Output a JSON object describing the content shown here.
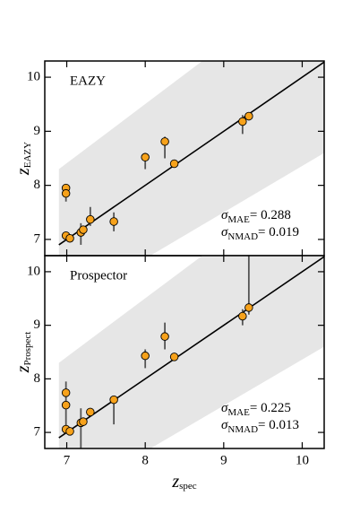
{
  "chart_data": [
    {
      "type": "scatter",
      "label": "EAZY",
      "ylabel": {
        "main": "z",
        "sub": "EAZY"
      },
      "annotations": [
        {
          "sym": "σ",
          "sub": "MAE",
          "text": "= 0.288"
        },
        {
          "sym": "σ",
          "sub": "NMAD",
          "text": "= 0.019"
        }
      ],
      "xlim": [
        6.72,
        10.28
      ],
      "ylim": [
        6.7,
        10.3
      ],
      "xticks": [
        7,
        8,
        9,
        10
      ],
      "yticks": [
        7,
        8,
        9,
        10
      ],
      "color": "#f7a21b",
      "errcolor": "#555555",
      "bandcolor": "#e6e6e6",
      "band": {
        "x": [
          6.9,
          10.28
        ],
        "lower": [
          5.7,
          8.6
        ],
        "upper": [
          8.3,
          12.0
        ]
      },
      "one_to_one": {
        "x": [
          6.9,
          10.28
        ],
        "y": [
          6.9,
          10.28
        ]
      },
      "x": [
        6.99,
        6.99,
        6.99,
        7.04,
        7.18,
        7.21,
        7.3,
        7.6,
        8.0,
        8.25,
        8.37,
        9.24,
        9.32
      ],
      "y": [
        7.95,
        7.85,
        7.07,
        7.02,
        7.13,
        7.18,
        7.37,
        7.33,
        8.52,
        8.81,
        8.4,
        9.18,
        9.28
      ],
      "y_low": [
        7.9,
        7.7,
        7.02,
        6.98,
        6.9,
        7.1,
        7.25,
        7.15,
        8.3,
        8.5,
        8.35,
        8.95,
        9.2
      ],
      "y_high": [
        8.0,
        7.95,
        7.12,
        7.06,
        7.3,
        7.25,
        7.6,
        7.5,
        8.6,
        8.9,
        8.45,
        9.3,
        9.33
      ]
    },
    {
      "type": "scatter",
      "label": "Prospector",
      "ylabel": {
        "main": "z",
        "sub": "Prospect"
      },
      "xlabel": {
        "main": "z",
        "sub": "spec"
      },
      "annotations": [
        {
          "sym": "σ",
          "sub": "MAE",
          "text": "= 0.225"
        },
        {
          "sym": "σ",
          "sub": "NMAD",
          "text": "= 0.013"
        }
      ],
      "xlim": [
        6.72,
        10.28
      ],
      "ylim": [
        6.7,
        10.3
      ],
      "xticks": [
        7,
        8,
        9,
        10
      ],
      "yticks": [
        7,
        8,
        9,
        10
      ],
      "color": "#f7a21b",
      "errcolor": "#555555",
      "bandcolor": "#e6e6e6",
      "band": {
        "x": [
          6.9,
          10.28
        ],
        "lower": [
          5.7,
          8.6
        ],
        "upper": [
          8.3,
          12.0
        ]
      },
      "one_to_one": {
        "x": [
          6.9,
          10.28
        ],
        "y": [
          6.9,
          10.28
        ]
      },
      "x": [
        6.99,
        6.99,
        6.99,
        7.04,
        7.18,
        7.21,
        7.3,
        7.6,
        8.0,
        8.25,
        8.37,
        9.24,
        9.32
      ],
      "y": [
        7.74,
        7.51,
        7.06,
        7.02,
        7.18,
        7.2,
        7.38,
        7.61,
        8.43,
        8.79,
        8.41,
        9.17,
        9.33
      ],
      "y_low": [
        7.55,
        7.0,
        7.0,
        6.98,
        6.7,
        7.12,
        7.3,
        7.15,
        8.2,
        8.55,
        8.36,
        9.0,
        9.2
      ],
      "y_high": [
        7.95,
        7.6,
        7.1,
        7.06,
        7.45,
        7.28,
        7.45,
        7.65,
        8.55,
        9.05,
        8.46,
        9.3,
        10.3
      ]
    }
  ]
}
